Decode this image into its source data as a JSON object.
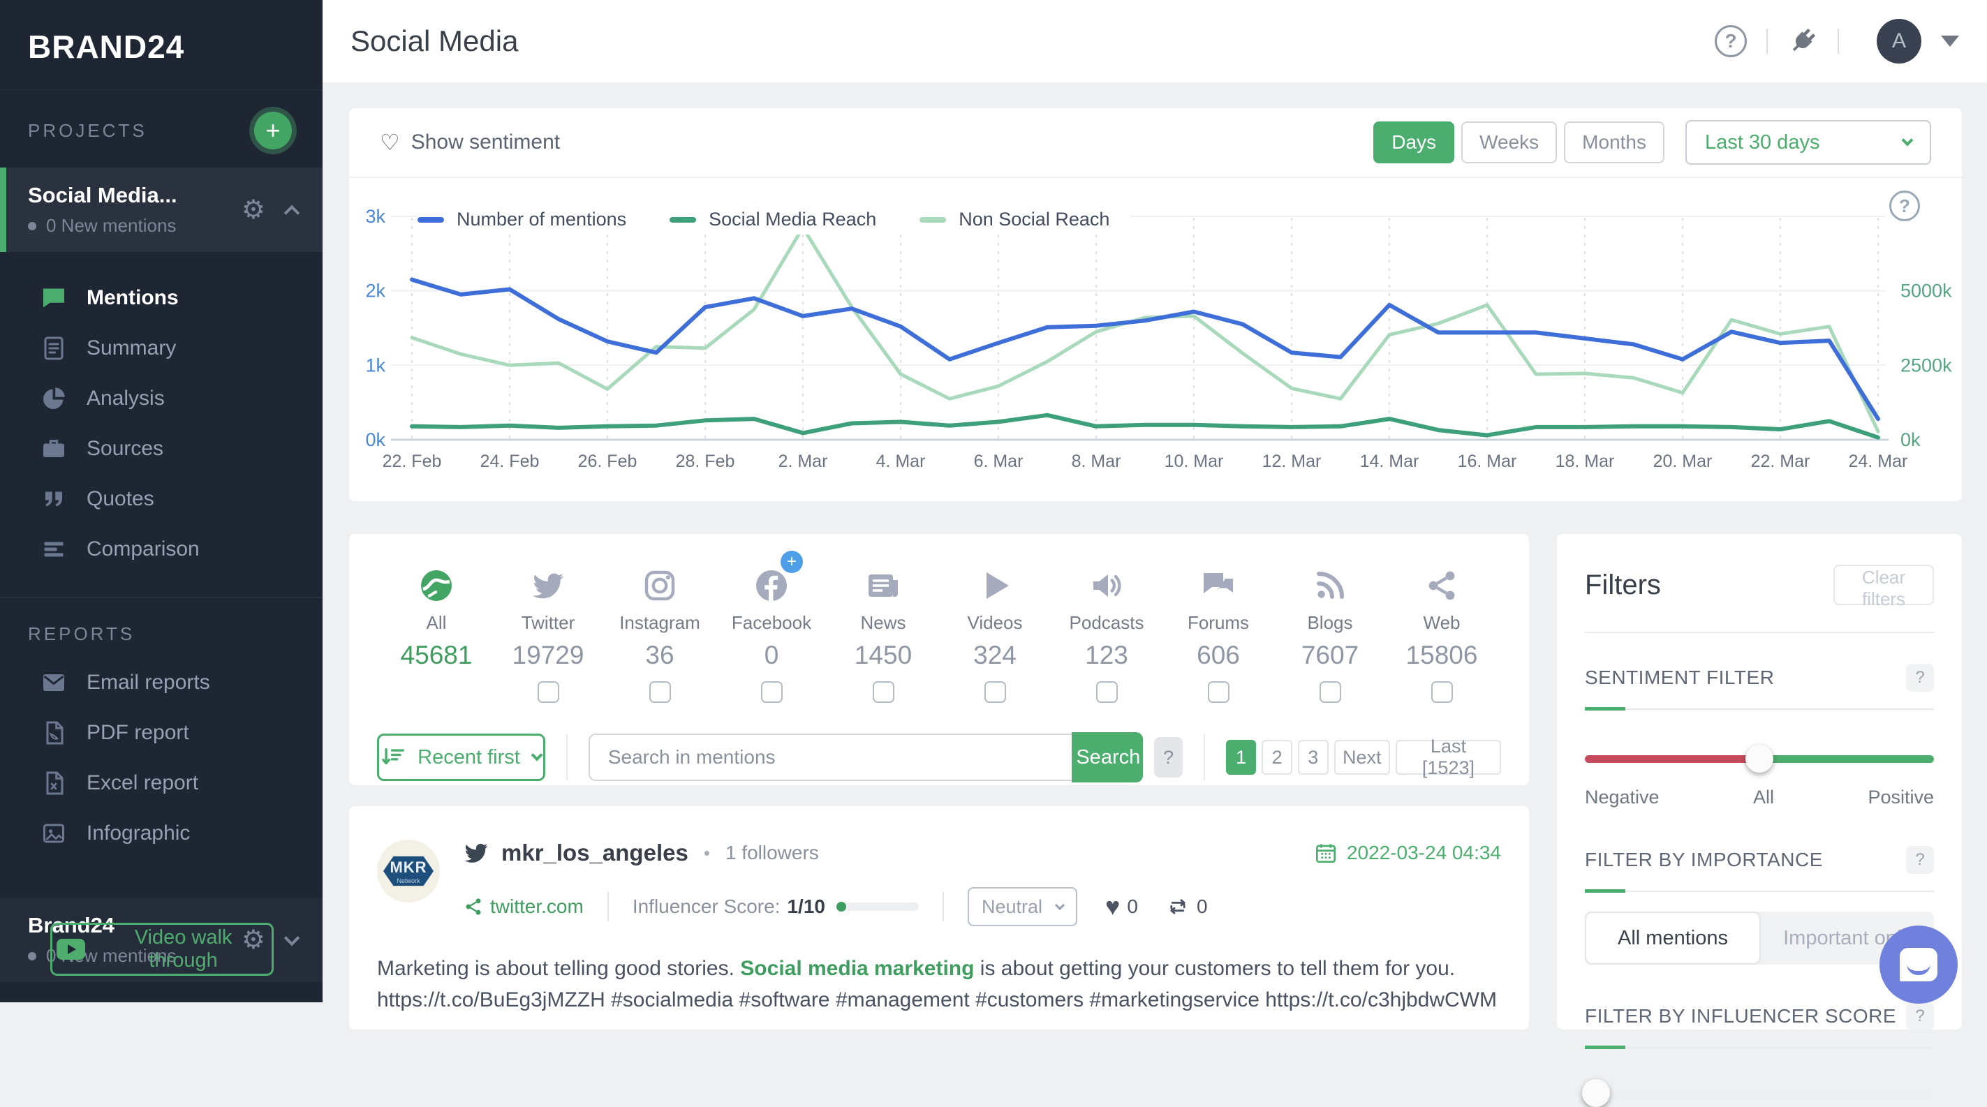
{
  "colors": {
    "accent_green": "#4cae6e",
    "link_green": "#3f9d5f",
    "chart_blue": "#3e6fd9",
    "chart_green": "#3da07a",
    "chart_light_green": "#a9d9bb",
    "negative_red": "#c64a5c",
    "facebook_plus_blue": "#4f9ee8",
    "intercom_purple": "#7080dd"
  },
  "sidebar": {
    "logo": "BRAND24",
    "projects_label": "PROJECTS",
    "add_project_label": "+",
    "active_project": {
      "name": "Social Media...",
      "status": "0 New mentions"
    },
    "nav": [
      {
        "label": "Mentions",
        "icon": "chat-icon",
        "active": true
      },
      {
        "label": "Summary",
        "icon": "document-icon",
        "active": false
      },
      {
        "label": "Analysis",
        "icon": "pie-chart-icon",
        "active": false
      },
      {
        "label": "Sources",
        "icon": "briefcase-icon",
        "active": false
      },
      {
        "label": "Quotes",
        "icon": "quote-icon",
        "active": false
      },
      {
        "label": "Comparison",
        "icon": "bars-icon",
        "active": false
      }
    ],
    "reports_label": "REPORTS",
    "reports_nav": [
      {
        "label": "Email reports",
        "icon": "envelope-icon"
      },
      {
        "label": "PDF report",
        "icon": "pdf-file-icon"
      },
      {
        "label": "Excel report",
        "icon": "excel-file-icon"
      },
      {
        "label": "Infographic",
        "icon": "image-icon"
      }
    ],
    "secondary_project": {
      "name": "Brand24",
      "status": "0 New mentions"
    },
    "video_button": "Video walk through"
  },
  "header": {
    "title": "Social Media",
    "avatar_letter": "A"
  },
  "toolbar": {
    "show_sentiment": "Show sentiment",
    "granularity": [
      {
        "label": "Days",
        "active": true
      },
      {
        "label": "Weeks",
        "active": false
      },
      {
        "label": "Months",
        "active": false
      }
    ],
    "range_label": "Last 30 days"
  },
  "chart_data": {
    "type": "line",
    "title": "",
    "x_tick_labels": [
      "22. Feb",
      "24. Feb",
      "26. Feb",
      "28. Feb",
      "2. Mar",
      "4. Mar",
      "6. Mar",
      "8. Mar",
      "10. Mar",
      "12. Mar",
      "14. Mar",
      "16. Mar",
      "18. Mar",
      "20. Mar",
      "22. Mar",
      "24. Mar"
    ],
    "n_points": 31,
    "left_axis": {
      "ticks": [
        "0k",
        "1k",
        "2k",
        "3k"
      ],
      "range": [
        0,
        3000
      ],
      "color": "#4a86d8"
    },
    "right_axis": {
      "ticks": [
        "0k",
        "2500k",
        "5000k"
      ],
      "range_thousands": [
        0,
        7500
      ],
      "color": "#55a581"
    },
    "grid": {
      "horizontal": true,
      "vertical_dotted": true
    },
    "legend_position": "top-left",
    "series": [
      {
        "name": "Number of mentions",
        "color": "#3e6fd9",
        "axis": "left",
        "unit": "count",
        "values": [
          2150,
          1950,
          2020,
          1620,
          1320,
          1170,
          1780,
          1900,
          1660,
          1760,
          1520,
          1080,
          1300,
          1510,
          1530,
          1600,
          1720,
          1550,
          1170,
          1110,
          1810,
          1440,
          1440,
          1440,
          1360,
          1280,
          1080,
          1450,
          1300,
          1330,
          280
        ]
      },
      {
        "name": "Social Media Reach",
        "color": "#3da07a",
        "axis": "right",
        "unit": "thousands",
        "values": [
          450,
          425,
          475,
          400,
          450,
          475,
          650,
          700,
          225,
          550,
          600,
          475,
          600,
          825,
          450,
          500,
          500,
          450,
          425,
          450,
          700,
          325,
          150,
          425,
          425,
          450,
          450,
          425,
          350,
          625,
          75
        ]
      },
      {
        "name": "Non Social Reach",
        "color": "#a9d9bb",
        "axis": "right",
        "unit": "thousands",
        "values": [
          3425,
          2875,
          2500,
          2575,
          1700,
          3125,
          3075,
          4375,
          7125,
          4450,
          2200,
          1375,
          1800,
          2625,
          3625,
          4100,
          4150,
          2900,
          1725,
          1375,
          3525,
          3900,
          4525,
          2200,
          2225,
          2075,
          1575,
          4025,
          3550,
          3800,
          275
        ]
      }
    ]
  },
  "sources": {
    "items": [
      {
        "label": "All",
        "value": "45681",
        "icon": "globe-icon",
        "active": true,
        "checkbox": false,
        "plus_badge": false
      },
      {
        "label": "Twitter",
        "value": "19729",
        "icon": "twitter-icon",
        "active": false,
        "checkbox": true,
        "plus_badge": false
      },
      {
        "label": "Instagram",
        "value": "36",
        "icon": "instagram-icon",
        "active": false,
        "checkbox": true,
        "plus_badge": false
      },
      {
        "label": "Facebook",
        "value": "0",
        "icon": "facebook-icon",
        "active": false,
        "checkbox": true,
        "plus_badge": true
      },
      {
        "label": "News",
        "value": "1450",
        "icon": "newspaper-icon",
        "active": false,
        "checkbox": true,
        "plus_badge": false
      },
      {
        "label": "Videos",
        "value": "324",
        "icon": "play-icon",
        "active": false,
        "checkbox": true,
        "plus_badge": false
      },
      {
        "label": "Podcasts",
        "value": "123",
        "icon": "speaker-icon",
        "active": false,
        "checkbox": true,
        "plus_badge": false
      },
      {
        "label": "Forums",
        "value": "606",
        "icon": "forum-icon",
        "active": false,
        "checkbox": true,
        "plus_badge": false
      },
      {
        "label": "Blogs",
        "value": "7607",
        "icon": "rss-icon",
        "active": false,
        "checkbox": true,
        "plus_badge": false
      },
      {
        "label": "Web",
        "value": "15806",
        "icon": "share-icon",
        "active": false,
        "checkbox": true,
        "plus_badge": false
      }
    ]
  },
  "search": {
    "sort_label": "Recent first",
    "placeholder": "Search in mentions",
    "button": "Search",
    "help": "?",
    "pagination": [
      {
        "label": "1",
        "active": true
      },
      {
        "label": "2",
        "active": false
      },
      {
        "label": "3",
        "active": false
      },
      {
        "label": "Next",
        "active": false
      },
      {
        "label": "Last [1523]",
        "active": false
      }
    ]
  },
  "mention": {
    "avatar_text": "MKR",
    "avatar_sub": "Network",
    "username": "mkr_los_angeles",
    "followers": "1 followers",
    "date": "2022-03-24 04:34",
    "source": "twitter.com",
    "influencer_label": "Influencer Score:",
    "influencer_score": "1/10",
    "sentiment": "Neutral",
    "likes": "0",
    "shares": "0",
    "text_before": "Marketing is about telling good stories. ",
    "text_keyword": "Social media marketing",
    "text_after": " is about getting your customers to tell them for you. https://t.co/BuEg3jMZZH #socialmedia #software #management #customers #marketingservice https://t.co/c3hjbdwCWM"
  },
  "filters": {
    "title": "Filters",
    "clear_button": "Clear filters",
    "sections": {
      "sentiment": {
        "title": "SENTIMENT FILTER",
        "help": "?",
        "labels": [
          "Negative",
          "All",
          "Positive"
        ]
      },
      "importance": {
        "title": "FILTER BY IMPORTANCE",
        "help": "?",
        "tabs": [
          {
            "label": "All mentions",
            "active": true
          },
          {
            "label": "Important only",
            "active": false
          }
        ]
      },
      "influencer": {
        "title": "FILTER BY INFLUENCER SCORE",
        "help": "?"
      }
    }
  }
}
